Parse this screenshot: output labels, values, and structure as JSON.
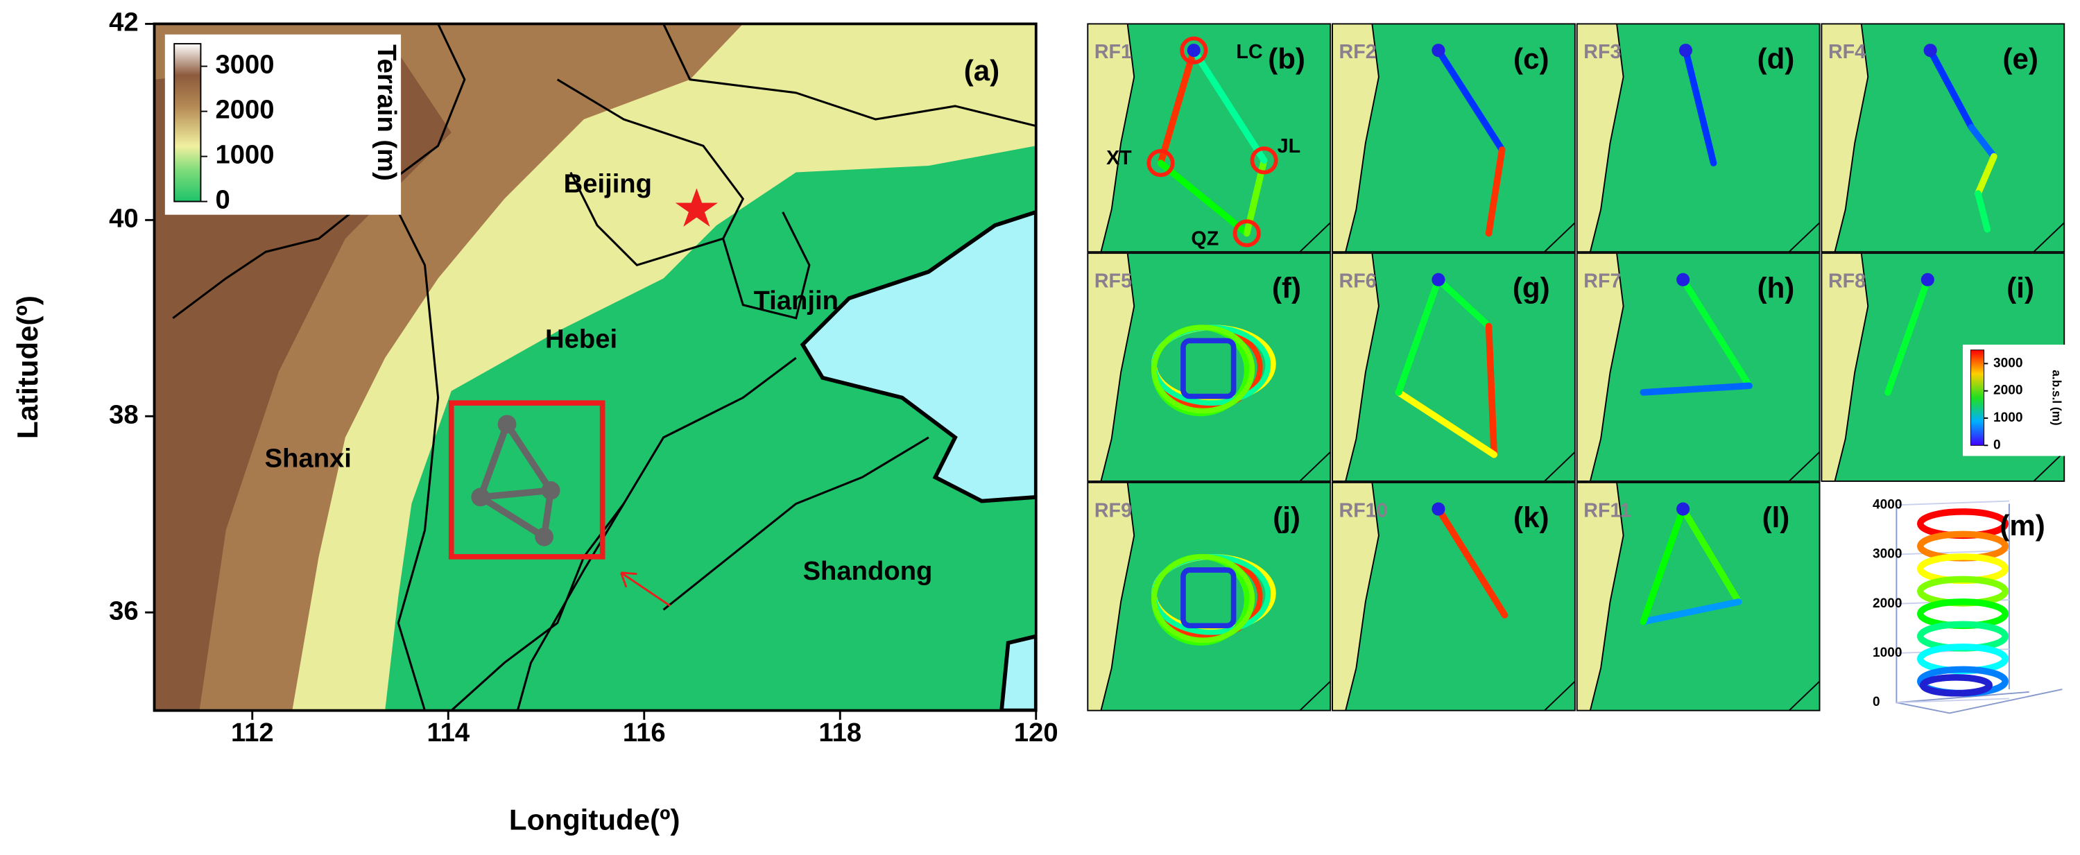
{
  "main_map": {
    "panel_label": "(a)",
    "x_label": "Longitude(º)",
    "y_label": "Latitude(º)",
    "xlim": [
      111,
      120
    ],
    "ylim": [
      35,
      42
    ],
    "xticks": [
      112,
      114,
      116,
      118,
      120
    ],
    "yticks": [
      36,
      38,
      40,
      42
    ],
    "place_labels": [
      "Beijing",
      "Tianjin",
      "Hebei",
      "Shanxi",
      "Shandong"
    ],
    "colorbar": {
      "label": "Terrain (m)",
      "lim": [
        0,
        3500
      ],
      "ticks": [
        0,
        1000,
        2000,
        3000
      ]
    }
  },
  "flight_panels": [
    {
      "flight": "RF1",
      "panel_label": "(b)"
    },
    {
      "flight": "RF2",
      "panel_label": "(c)"
    },
    {
      "flight": "RF3",
      "panel_label": "(d)"
    },
    {
      "flight": "RF4",
      "panel_label": "(e)"
    },
    {
      "flight": "RF5",
      "panel_label": "(f)"
    },
    {
      "flight": "RF6",
      "panel_label": "(g)"
    },
    {
      "flight": "RF7",
      "panel_label": "(h)"
    },
    {
      "flight": "RF8",
      "panel_label": "(i)"
    },
    {
      "flight": "RF9",
      "panel_label": "(j)"
    },
    {
      "flight": "RF10",
      "panel_label": "(k)"
    },
    {
      "flight": "RF11",
      "panel_label": "(l)"
    }
  ],
  "site_labels": [
    "LC",
    "XT",
    "JL",
    "QZ"
  ],
  "altitude_colorbar": {
    "label": "a.b.s.l (m)",
    "lim": [
      0,
      3500
    ],
    "ticks": [
      0,
      1000,
      2000,
      3000
    ]
  },
  "profile_panel": {
    "panel_label": "(m)",
    "lim": [
      0,
      4000
    ],
    "ticks": [
      0,
      1000,
      2000,
      3000,
      4000
    ]
  }
}
